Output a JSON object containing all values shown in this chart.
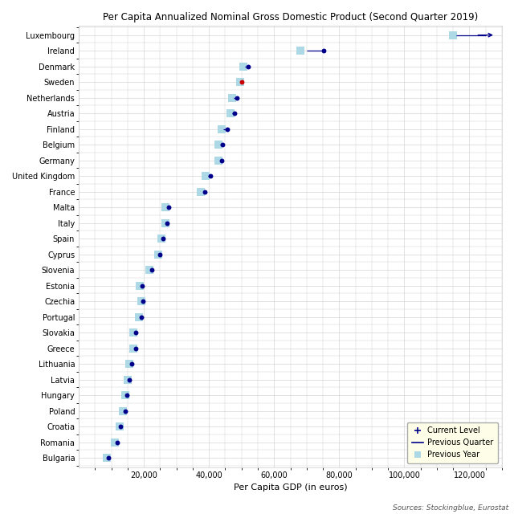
{
  "title": "Per Capita Annualized Nominal Gross Domestic Product (Second Quarter 2019)",
  "xlabel": "Per Capita GDP (in euros)",
  "source": "Sources: Stockingblue, Eurostat",
  "countries": [
    "Luxembourg",
    "Ireland",
    "Denmark",
    "Sweden",
    "Netherlands",
    "Austria",
    "Finland",
    "Belgium",
    "Germany",
    "United Kingdom",
    "France",
    "Malta",
    "Italy",
    "Spain",
    "Cyprus",
    "Slovenia",
    "Estonia",
    "Czechia",
    "Portugal",
    "Slovakia",
    "Greece",
    "Lithuania",
    "Latvia",
    "Hungary",
    "Poland",
    "Croatia",
    "Romania",
    "Bulgaria"
  ],
  "current": [
    125000,
    75200,
    52000,
    50000,
    48500,
    47800,
    45500,
    44200,
    44000,
    40500,
    38800,
    27500,
    27000,
    26000,
    25000,
    22500,
    19500,
    19800,
    19200,
    17500,
    17500,
    16200,
    15500,
    14800,
    14200,
    12800,
    11800,
    9000
  ],
  "prev_quarter": [
    116000,
    70000,
    51000,
    null,
    47500,
    47000,
    44500,
    43500,
    43500,
    39800,
    38200,
    27000,
    null,
    null,
    null,
    22000,
    19000,
    19500,
    18800,
    17200,
    17200,
    15800,
    15200,
    14500,
    13800,
    null,
    null,
    null
  ],
  "prev_year": [
    115000,
    68000,
    50500,
    49500,
    47000,
    46500,
    44000,
    43000,
    43000,
    39000,
    37500,
    26500,
    26500,
    25500,
    24500,
    21800,
    18800,
    19200,
    18500,
    16800,
    16800,
    15500,
    15000,
    14200,
    13500,
    12500,
    11000,
    8700
  ],
  "current_color_default": "#00008B",
  "current_color_sweden": "#CC0000",
  "prev_year_color": "#ADD8E6",
  "grid_color": "#CCCCCC",
  "xlim": [
    0,
    130000
  ],
  "xtick_step": 20000,
  "figsize": [
    6.4,
    6.4
  ],
  "dpi": 100
}
